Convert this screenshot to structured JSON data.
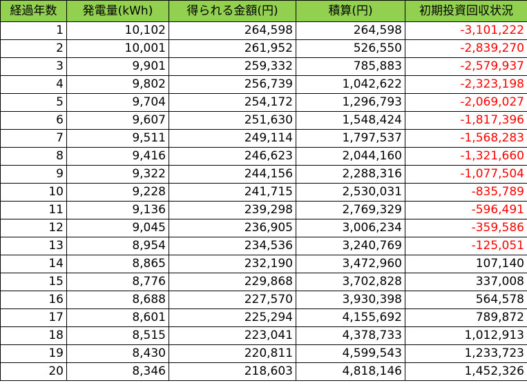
{
  "colors": {
    "header_bg": "#92d050",
    "negative_text": "#ff0000",
    "grid": "#000000"
  },
  "headers": [
    "経過年数",
    "発電量(kWh)",
    "得られる金額(円)",
    "積算(円)",
    "初期投資回収状況"
  ],
  "rows": [
    {
      "year": "1",
      "kwh": "10,102",
      "amount": "264,598",
      "cumulative": "264,598",
      "recovery": "-3,101,222",
      "negative": true
    },
    {
      "year": "2",
      "kwh": "10,001",
      "amount": "261,952",
      "cumulative": "526,550",
      "recovery": "-2,839,270",
      "negative": true
    },
    {
      "year": "3",
      "kwh": "9,901",
      "amount": "259,332",
      "cumulative": "785,883",
      "recovery": "-2,579,937",
      "negative": true
    },
    {
      "year": "4",
      "kwh": "9,802",
      "amount": "256,739",
      "cumulative": "1,042,622",
      "recovery": "-2,323,198",
      "negative": true
    },
    {
      "year": "5",
      "kwh": "9,704",
      "amount": "254,172",
      "cumulative": "1,296,793",
      "recovery": "-2,069,027",
      "negative": true
    },
    {
      "year": "6",
      "kwh": "9,607",
      "amount": "251,630",
      "cumulative": "1,548,424",
      "recovery": "-1,817,396",
      "negative": true
    },
    {
      "year": "7",
      "kwh": "9,511",
      "amount": "249,114",
      "cumulative": "1,797,537",
      "recovery": "-1,568,283",
      "negative": true
    },
    {
      "year": "8",
      "kwh": "9,416",
      "amount": "246,623",
      "cumulative": "2,044,160",
      "recovery": "-1,321,660",
      "negative": true
    },
    {
      "year": "9",
      "kwh": "9,322",
      "amount": "244,156",
      "cumulative": "2,288,316",
      "recovery": "-1,077,504",
      "negative": true
    },
    {
      "year": "10",
      "kwh": "9,228",
      "amount": "241,715",
      "cumulative": "2,530,031",
      "recovery": "-835,789",
      "negative": true
    },
    {
      "year": "11",
      "kwh": "9,136",
      "amount": "239,298",
      "cumulative": "2,769,329",
      "recovery": "-596,491",
      "negative": true
    },
    {
      "year": "12",
      "kwh": "9,045",
      "amount": "236,905",
      "cumulative": "3,006,234",
      "recovery": "-359,586",
      "negative": true
    },
    {
      "year": "13",
      "kwh": "8,954",
      "amount": "234,536",
      "cumulative": "3,240,769",
      "recovery": "-125,051",
      "negative": true
    },
    {
      "year": "14",
      "kwh": "8,865",
      "amount": "232,190",
      "cumulative": "3,472,960",
      "recovery": "107,140",
      "negative": false
    },
    {
      "year": "15",
      "kwh": "8,776",
      "amount": "229,868",
      "cumulative": "3,702,828",
      "recovery": "337,008",
      "negative": false
    },
    {
      "year": "16",
      "kwh": "8,688",
      "amount": "227,570",
      "cumulative": "3,930,398",
      "recovery": "564,578",
      "negative": false
    },
    {
      "year": "17",
      "kwh": "8,601",
      "amount": "225,294",
      "cumulative": "4,155,692",
      "recovery": "789,872",
      "negative": false
    },
    {
      "year": "18",
      "kwh": "8,515",
      "amount": "223,041",
      "cumulative": "4,378,733",
      "recovery": "1,012,913",
      "negative": false
    },
    {
      "year": "19",
      "kwh": "8,430",
      "amount": "220,811",
      "cumulative": "4,599,543",
      "recovery": "1,233,723",
      "negative": false
    },
    {
      "year": "20",
      "kwh": "8,346",
      "amount": "218,603",
      "cumulative": "4,818,146",
      "recovery": "1,452,326",
      "negative": false
    }
  ]
}
